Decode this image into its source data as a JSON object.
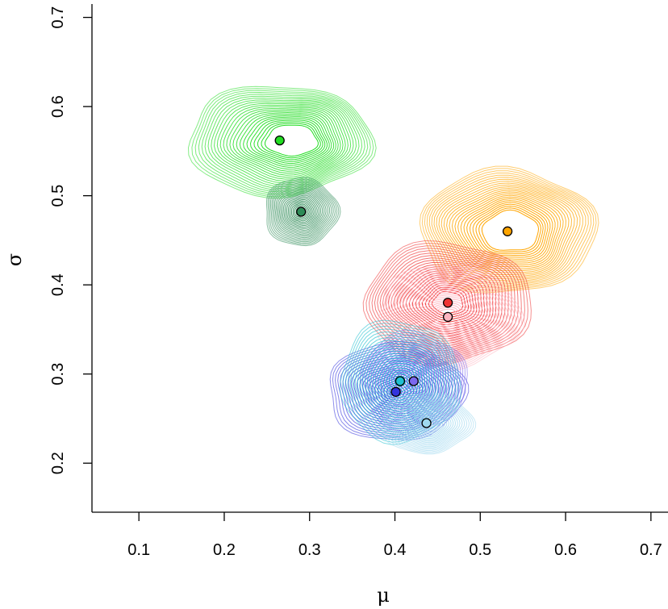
{
  "chart_data": {
    "type": "scatter",
    "title": "",
    "xlabel": "μ",
    "ylabel": "σ",
    "xlim": [
      0.045,
      0.72
    ],
    "ylim": [
      0.145,
      0.715
    ],
    "xticks": [
      "0.1",
      "0.2",
      "0.3",
      "0.4",
      "0.5",
      "0.6",
      "0.7"
    ],
    "yticks": [
      "0.2",
      "0.3",
      "0.4",
      "0.5",
      "0.6",
      "0.7"
    ],
    "grid": false,
    "series": [
      {
        "color": "#22dd22",
        "point": [
          0.265,
          0.562
        ],
        "spread": [
          0.108,
          0.062
        ],
        "hole": 0.28,
        "skew": 0.18
      },
      {
        "color": "#2e8b57",
        "point": [
          0.29,
          0.482
        ],
        "spread": [
          0.043,
          0.038
        ],
        "hole": 0.0,
        "skew": 0.0
      },
      {
        "color": "#ffa500",
        "point": [
          0.532,
          0.46
        ],
        "spread": [
          0.103,
          0.07
        ],
        "hole": 0.32,
        "skew": 0.05
      },
      {
        "color": "#ee3333",
        "point": [
          0.462,
          0.38
        ],
        "spread": [
          0.098,
          0.068
        ],
        "hole": 0.18,
        "skew": 0.0
      },
      {
        "color": "#ffb6c1",
        "point": [
          0.462,
          0.364
        ],
        "spread": [
          0.085,
          0.058
        ],
        "hole": 0.15,
        "skew": 0.0
      },
      {
        "color": "#3333dd",
        "point": [
          0.401,
          0.28
        ],
        "spread": [
          0.08,
          0.055
        ],
        "hole": 0.0,
        "skew": 0.0
      },
      {
        "color": "#7b68ee",
        "point": [
          0.422,
          0.292
        ],
        "spread": [
          0.062,
          0.055
        ],
        "hole": 0.0,
        "skew": 0.0
      },
      {
        "color": "#20c0d0",
        "point": [
          0.406,
          0.292
        ],
        "spread": [
          0.07,
          0.068
        ],
        "hole": 0.0,
        "skew": 0.0
      },
      {
        "color": "#9fd8ef",
        "point": [
          0.437,
          0.245
        ],
        "spread": [
          0.054,
          0.034
        ],
        "hole": 0.0,
        "skew": 0.0
      }
    ]
  }
}
